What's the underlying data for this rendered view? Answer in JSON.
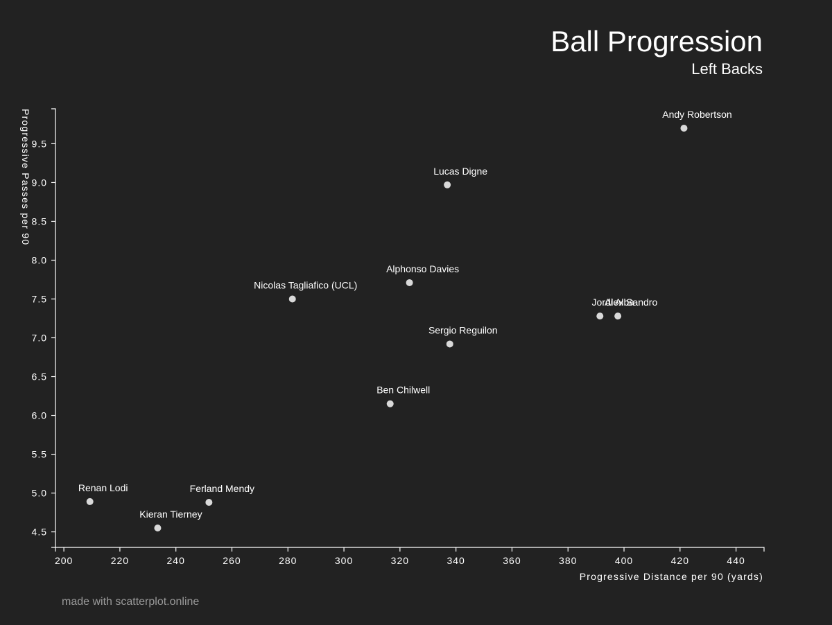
{
  "chart_data": {
    "type": "scatter",
    "title": "Ball Progression",
    "subtitle": "Left Backs",
    "xlabel": "Progressive Distance per 90 (yards)",
    "ylabel": "Progressive Passes per 90",
    "xlim": [
      197,
      450
    ],
    "ylim": [
      4.3,
      9.95
    ],
    "x_ticks": [
      "200",
      "220",
      "240",
      "260",
      "280",
      "300",
      "320",
      "340",
      "360",
      "380",
      "400",
      "420",
      "440"
    ],
    "y_ticks": [
      "4.5",
      "5.0",
      "5.5",
      "6.0",
      "6.5",
      "7.0",
      "7.5",
      "8.0",
      "8.5",
      "9.0",
      "9.5"
    ],
    "grid": false,
    "point_color": "#d9d9d9",
    "background_color": "#222222",
    "points": [
      {
        "label": "Andy Robertson",
        "x": 421.4,
        "y": 9.7
      },
      {
        "label": "Lucas Digne",
        "x": 336.9,
        "y": 8.97
      },
      {
        "label": "Alphonso Davies",
        "x": 323.4,
        "y": 7.71
      },
      {
        "label": "Nicolas Tagliafico (UCL)",
        "x": 281.6,
        "y": 7.5
      },
      {
        "label": "Jordi Alba",
        "x": 391.4,
        "y": 7.28
      },
      {
        "label": "Alex Sandro",
        "x": 397.8,
        "y": 7.28
      },
      {
        "label": "Sergio Reguilon",
        "x": 337.8,
        "y": 6.92
      },
      {
        "label": "Ben Chilwell",
        "x": 316.5,
        "y": 6.15
      },
      {
        "label": "Renan Lodi",
        "x": 209.3,
        "y": 4.89
      },
      {
        "label": "Ferland Mendy",
        "x": 251.8,
        "y": 4.88
      },
      {
        "label": "Kieran Tierney",
        "x": 233.5,
        "y": 4.55
      }
    ]
  },
  "footer": {
    "credit": "made with scatterplot.online"
  }
}
